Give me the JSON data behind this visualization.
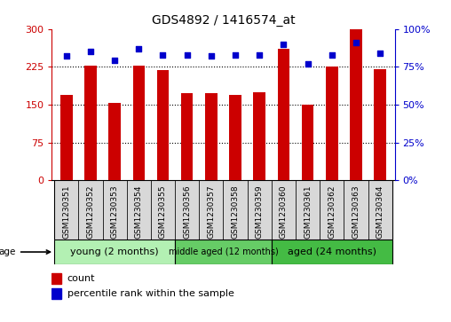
{
  "title": "GDS4892 / 1416574_at",
  "samples": [
    "GSM1230351",
    "GSM1230352",
    "GSM1230353",
    "GSM1230354",
    "GSM1230355",
    "GSM1230356",
    "GSM1230357",
    "GSM1230358",
    "GSM1230359",
    "GSM1230360",
    "GSM1230361",
    "GSM1230362",
    "GSM1230363",
    "GSM1230364"
  ],
  "counts": [
    170,
    228,
    153,
    228,
    218,
    173,
    173,
    170,
    175,
    260,
    150,
    225,
    300,
    220
  ],
  "percentiles": [
    82,
    85,
    79,
    87,
    83,
    83,
    82,
    83,
    83,
    90,
    77,
    83,
    91,
    84
  ],
  "bar_color": "#cc0000",
  "dot_color": "#0000cc",
  "ylim_left": [
    0,
    300
  ],
  "ylim_right": [
    0,
    100
  ],
  "yticks_left": [
    0,
    75,
    150,
    225,
    300
  ],
  "yticks_right": [
    0,
    25,
    50,
    75,
    100
  ],
  "ytick_labels_left": [
    "0",
    "75",
    "150",
    "225",
    "300"
  ],
  "ytick_labels_right": [
    "0%",
    "25%",
    "50%",
    "75%",
    "100%"
  ],
  "groups": [
    {
      "label": "young (2 months)",
      "start": 0,
      "end": 5,
      "color": "#b3f0b3"
    },
    {
      "label": "middle aged (12 months)",
      "start": 5,
      "end": 9,
      "color": "#66cc66"
    },
    {
      "label": "aged (24 months)",
      "start": 9,
      "end": 14,
      "color": "#44bb44"
    }
  ],
  "legend_count_label": "count",
  "legend_percentile_label": "percentile rank within the sample",
  "background_color": "#ffffff",
  "bar_width": 0.5
}
